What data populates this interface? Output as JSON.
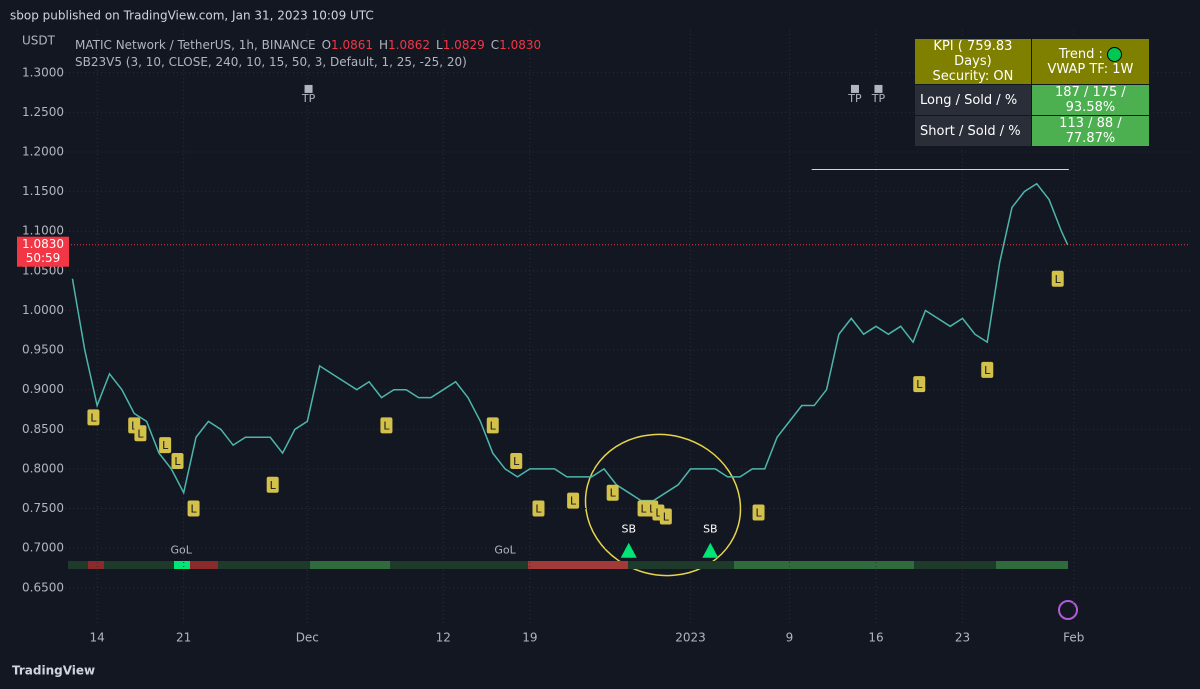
{
  "header": {
    "published": "sbop published on TradingView.com, Jan 31, 2023 10:09 UTC",
    "footer": "TradingView"
  },
  "legend": {
    "currency": "USDT",
    "symbol": "MATIC Network / TetherUS, 1h, BINANCE",
    "ohlc": [
      {
        "key": "O",
        "text": "1.0861"
      },
      {
        "key": "H",
        "text": "1.0862"
      },
      {
        "key": "L",
        "text": "1.0829"
      },
      {
        "key": "C",
        "text": "1.0830"
      }
    ],
    "indicator": "SB23V5 (3, 10, CLOSE, 240, 10, 15, 50, 3, Default, 1, 25, -25, 20)"
  },
  "table": {
    "rows": [
      [
        "KPI ( 759.83 Days)",
        "Trend :"
      ],
      [
        "Security: ON",
        "VWAP TF: 1W"
      ],
      [
        "Long / Sold / %",
        "187 / 175 / 93.58%"
      ],
      [
        "Short / Sold / %",
        "113 / 88 / 77.87%"
      ]
    ]
  },
  "chart_data": {
    "type": "line",
    "color": "#4db6ac",
    "x": [
      -2,
      -1,
      0,
      1,
      2,
      3,
      4,
      5,
      6,
      7,
      8,
      9,
      10,
      11,
      12,
      13,
      14,
      15,
      16,
      17,
      18,
      19,
      20,
      21,
      22,
      23,
      24,
      25,
      26,
      27,
      28,
      29,
      30,
      31,
      32,
      33,
      34,
      35,
      36,
      37,
      38,
      39,
      40,
      41,
      42,
      43,
      44,
      45,
      46,
      47,
      48,
      49,
      50,
      51,
      52,
      53,
      54,
      55,
      56,
      57,
      58,
      59,
      60,
      61,
      62,
      63,
      64,
      65,
      66,
      67,
      68,
      69,
      70,
      71,
      72,
      73,
      74,
      75,
      76,
      77,
      78,
      78.5
    ],
    "values": [
      1.04,
      0.95,
      0.88,
      0.92,
      0.9,
      0.87,
      0.86,
      0.82,
      0.8,
      0.77,
      0.84,
      0.86,
      0.85,
      0.83,
      0.84,
      0.84,
      0.84,
      0.82,
      0.85,
      0.86,
      0.93,
      0.92,
      0.91,
      0.9,
      0.91,
      0.89,
      0.9,
      0.9,
      0.89,
      0.89,
      0.9,
      0.91,
      0.89,
      0.86,
      0.82,
      0.8,
      0.79,
      0.8,
      0.8,
      0.8,
      0.79,
      0.79,
      0.79,
      0.8,
      0.78,
      0.77,
      0.76,
      0.76,
      0.77,
      0.78,
      0.8,
      0.8,
      0.8,
      0.79,
      0.79,
      0.8,
      0.8,
      0.84,
      0.86,
      0.88,
      0.88,
      0.9,
      0.97,
      0.99,
      0.97,
      0.98,
      0.97,
      0.98,
      0.96,
      1.0,
      0.99,
      0.98,
      0.99,
      0.97,
      0.96,
      1.06,
      1.13,
      1.15,
      1.16,
      1.14,
      1.1,
      1.083
    ],
    "xlim": [
      -2.6,
      88.4
    ],
    "ylim": [
      0.603,
      1.354
    ],
    "xticks": [
      {
        "value": 0,
        "label": "14"
      },
      {
        "value": 7,
        "label": "21"
      },
      {
        "value": 17,
        "label": "Dec"
      },
      {
        "value": 28,
        "label": "12"
      },
      {
        "value": 35,
        "label": "19"
      },
      {
        "value": 48,
        "label": "2023"
      },
      {
        "value": 56,
        "label": "9"
      },
      {
        "value": 63,
        "label": "16"
      },
      {
        "value": 70,
        "label": "23"
      },
      {
        "value": 79,
        "label": "Feb"
      }
    ],
    "yticks": [
      {
        "value": 0.65,
        "label": "0.6500"
      },
      {
        "value": 0.7,
        "label": "0.7000"
      },
      {
        "value": 0.75,
        "label": "0.7500"
      },
      {
        "value": 0.8,
        "label": "0.8000"
      },
      {
        "value": 0.85,
        "label": "0.8500"
      },
      {
        "value": 0.9,
        "label": "0.9000"
      },
      {
        "value": 0.95,
        "label": "0.9500"
      },
      {
        "value": 1.0,
        "label": "1.0000"
      },
      {
        "value": 1.05,
        "label": "1.0500"
      },
      {
        "value": 1.1,
        "label": "1.1000"
      },
      {
        "value": 1.15,
        "label": "1.1500"
      },
      {
        "value": 1.2,
        "label": "1.2000"
      },
      {
        "value": 1.25,
        "label": "1.2500"
      },
      {
        "value": 1.3,
        "label": "1.3000"
      }
    ],
    "grid": true,
    "last_price": {
      "value": 1.083,
      "label": "1.0830"
    },
    "countdown": "50:59",
    "hline": {
      "y": 1.178,
      "x_from": 57.8,
      "x_to": 78.6
    },
    "l_labels": [
      {
        "text": "L",
        "x": -0.3,
        "y": 0.865
      },
      {
        "text": "L",
        "x": 3,
        "y": 0.855
      },
      {
        "text": "L",
        "x": 3.5,
        "y": 0.845
      },
      {
        "text": "L",
        "x": 5.5,
        "y": 0.83
      },
      {
        "text": "L",
        "x": 6.5,
        "y": 0.81
      },
      {
        "text": "L",
        "x": 7.8,
        "y": 0.75
      },
      {
        "text": "L",
        "x": 14.2,
        "y": 0.78
      },
      {
        "text": "L",
        "x": 23.4,
        "y": 0.855
      },
      {
        "text": "L",
        "x": 32,
        "y": 0.855
      },
      {
        "text": "L",
        "x": 33.9,
        "y": 0.81
      },
      {
        "text": "L",
        "x": 35.7,
        "y": 0.75
      },
      {
        "text": "L",
        "x": 38.5,
        "y": 0.76
      },
      {
        "text": "L",
        "x": 41.7,
        "y": 0.77
      },
      {
        "text": "L",
        "x": 44.2,
        "y": 0.75
      },
      {
        "text": "L",
        "x": 44.9,
        "y": 0.75
      },
      {
        "text": "L",
        "x": 45.4,
        "y": 0.745
      },
      {
        "text": "L",
        "x": 46,
        "y": 0.74
      },
      {
        "text": "L",
        "x": 53.5,
        "y": 0.745
      },
      {
        "text": "L",
        "x": 66.5,
        "y": 0.907
      },
      {
        "text": "L",
        "x": 72,
        "y": 0.925
      },
      {
        "text": "L",
        "x": 77.7,
        "y": 1.04
      }
    ],
    "tp_labels": [
      {
        "text": "TP",
        "x": 17.1,
        "y": 1.267
      },
      {
        "text": "TP",
        "x": 61.3,
        "y": 1.267
      },
      {
        "text": "TP",
        "x": 63.2,
        "y": 1.267
      }
    ],
    "sb_signals": [
      {
        "text": "SB",
        "x": 43,
        "y": 0.698
      },
      {
        "text": "SB",
        "x": 49.6,
        "y": 0.698
      }
    ],
    "gol_labels": [
      {
        "text": "GoL",
        "x": 6.8,
        "y": 0.697
      },
      {
        "text": "GoL",
        "x": 33,
        "y": 0.697
      }
    ]
  }
}
